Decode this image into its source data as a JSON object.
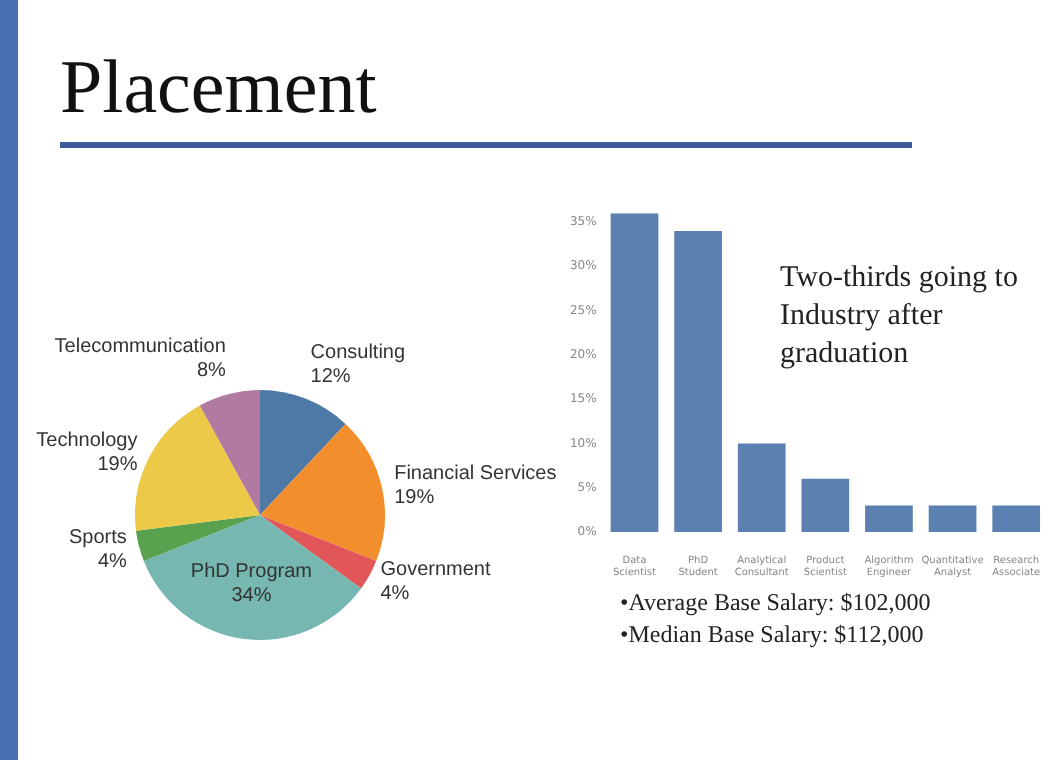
{
  "chart_data": [
    {
      "type": "pie",
      "title": "Placement",
      "categories": [
        "Consulting",
        "Financial Services",
        "Government",
        "PhD Program",
        "Sports",
        "Technology",
        "Telecommunication"
      ],
      "values": [
        12,
        19,
        4,
        34,
        4,
        19,
        8
      ],
      "colors": [
        "#4e79a7",
        "#f28e2b",
        "#e15759",
        "#76b7b2",
        "#59a14f",
        "#edc948",
        "#b07aa1"
      ],
      "value_labels": [
        "12%",
        "19%",
        "4%",
        "34%",
        "4%",
        "19%",
        "8%"
      ],
      "legend": false
    },
    {
      "type": "bar",
      "categories": [
        "Data Scientist",
        "PhD Student",
        "Analytical Consultant",
        "Product Scientist",
        "Algorithm Engineer",
        "Quantitative Analyst",
        "Research Associate"
      ],
      "values": [
        36,
        34,
        10,
        6,
        3,
        3,
        3
      ],
      "color": "#5b80b2",
      "ylim": [
        0,
        36
      ],
      "yticks": [
        {
          "value": 0,
          "label": "0%"
        },
        {
          "value": 5,
          "label": "5%"
        },
        {
          "value": 10,
          "label": "10%"
        },
        {
          "value": 15,
          "label": "15%"
        },
        {
          "value": 20,
          "label": "20%"
        },
        {
          "value": 25,
          "label": "25%"
        },
        {
          "value": 30,
          "label": "30%"
        },
        {
          "value": 35,
          "label": "35%"
        }
      ],
      "grid": false,
      "legend": false,
      "annotations": [
        "Two-thirds going to Industry after graduation",
        "•Average Base Salary: $102,000",
        "•Median Base Salary: $112,000"
      ]
    }
  ]
}
